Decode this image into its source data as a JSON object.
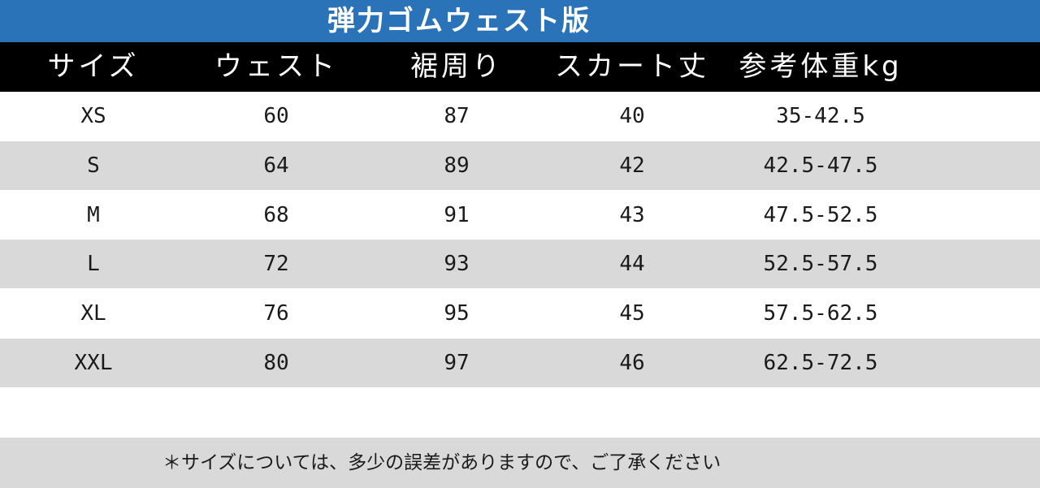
{
  "title": "弾力ゴムウェスト版",
  "headers": [
    "サイズ",
    "ウェスト",
    "裾周り",
    "スカート丈",
    "参考体重kg"
  ],
  "rows": [
    [
      "XS",
      "60",
      "87",
      "40",
      "35-42.5"
    ],
    [
      "S",
      "64",
      "89",
      "42",
      "42.5-47.5"
    ],
    [
      "M",
      "68",
      "91",
      "43",
      "47.5-52.5"
    ],
    [
      "L",
      "72",
      "93",
      "44",
      "52.5-57.5"
    ],
    [
      "XL",
      "76",
      "95",
      "45",
      "57.5-62.5"
    ],
    [
      "XXL",
      "80",
      "97",
      "46",
      "62.5-72.5"
    ]
  ],
  "note": "＊サイズについては、多少の誤差がありますので、ご了承ください",
  "colors": {
    "title_bg": "#2b73b8",
    "header_bg": "#000000",
    "shaded_row": "#d9d9d9"
  }
}
